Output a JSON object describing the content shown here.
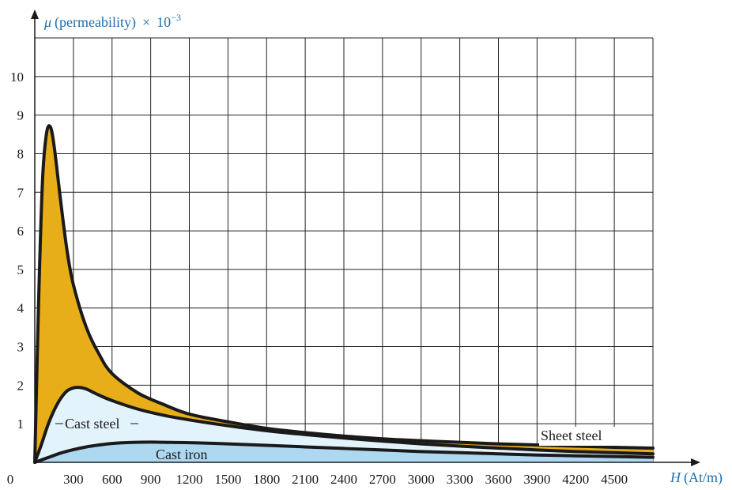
{
  "chart_data": {
    "type": "area",
    "title": "",
    "ylabel": {
      "symbol": "μ",
      "text": "(permeability)",
      "times": "×",
      "multiplier": "10",
      "exponent": "−3"
    },
    "xlabel": {
      "symbol": "H",
      "unit": "(At/m)"
    },
    "xlim": [
      0,
      4800
    ],
    "ylim": [
      0,
      11
    ],
    "x_ticks": [
      "0",
      "300",
      "600",
      "900",
      "1200",
      "1500",
      "1800",
      "2100",
      "2400",
      "2700",
      "3000",
      "3300",
      "3600",
      "3900",
      "4200",
      "4500"
    ],
    "y_ticks": [
      "1",
      "2",
      "3",
      "4",
      "5",
      "6",
      "7",
      "8",
      "9",
      "10"
    ],
    "grid": true,
    "series": [
      {
        "name": "Sheet steel",
        "color": "#e8ae1a",
        "x": [
          0,
          30,
          60,
          90,
          120,
          150,
          200,
          250,
          300,
          400,
          500,
          600,
          800,
          1000,
          1200,
          1500,
          1800,
          2100,
          2400,
          2700,
          3000,
          3300,
          3600,
          3900,
          4200,
          4500,
          4800
        ],
        "y": [
          0,
          4.2,
          7.3,
          8.5,
          8.7,
          8.2,
          6.8,
          5.5,
          4.6,
          3.5,
          2.8,
          2.3,
          1.8,
          1.5,
          1.25,
          1.05,
          0.88,
          0.77,
          0.68,
          0.61,
          0.56,
          0.52,
          0.48,
          0.45,
          0.42,
          0.39,
          0.37
        ]
      },
      {
        "name": "Cast steel",
        "color": "#e3f3fc",
        "x": [
          0,
          50,
          100,
          150,
          200,
          250,
          300,
          350,
          400,
          450,
          500,
          600,
          800,
          1000,
          1200,
          1500,
          1800,
          2100,
          2400,
          2700,
          3000,
          3300,
          3600,
          3900,
          4200,
          4500,
          4800
        ],
        "y": [
          0,
          0.45,
          0.95,
          1.35,
          1.65,
          1.85,
          1.93,
          1.94,
          1.9,
          1.82,
          1.74,
          1.6,
          1.38,
          1.22,
          1.1,
          0.95,
          0.82,
          0.72,
          0.63,
          0.55,
          0.48,
          0.42,
          0.37,
          0.32,
          0.28,
          0.25,
          0.22
        ]
      },
      {
        "name": "Cast iron",
        "color": "#aed8f2",
        "x": [
          0,
          100,
          200,
          300,
          400,
          500,
          600,
          700,
          800,
          900,
          1000,
          1200,
          1500,
          1800,
          2100,
          2400,
          2700,
          3000,
          3300,
          3600,
          3900,
          4200,
          4500,
          4800
        ],
        "y": [
          0,
          0.12,
          0.24,
          0.33,
          0.4,
          0.45,
          0.49,
          0.51,
          0.52,
          0.525,
          0.52,
          0.51,
          0.48,
          0.44,
          0.4,
          0.36,
          0.32,
          0.28,
          0.25,
          0.22,
          0.19,
          0.17,
          0.15,
          0.13
        ]
      }
    ]
  }
}
